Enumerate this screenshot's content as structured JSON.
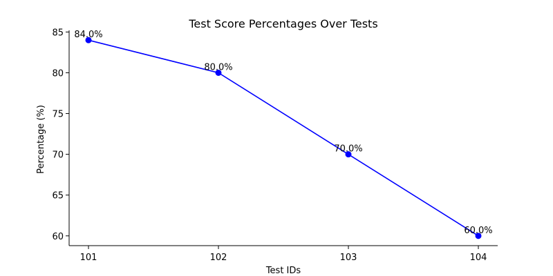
{
  "chart_data": {
    "type": "line",
    "title": "Test Score Percentages Over Tests",
    "xlabel": "Test IDs",
    "ylabel": "Percentage (%)",
    "categories": [
      "101",
      "102",
      "103",
      "104"
    ],
    "series": [
      {
        "values": [
          84.0,
          80.0,
          70.0,
          60.0
        ],
        "data_labels": [
          "84.0%",
          "80.0%",
          "70.0%",
          "60.0%"
        ],
        "color": "#0000ff"
      }
    ],
    "yticks": [
      "60",
      "65",
      "70",
      "75",
      "80",
      "85"
    ],
    "ylim": [
      58.8,
      85.2
    ],
    "grid": false,
    "legend": "none"
  }
}
